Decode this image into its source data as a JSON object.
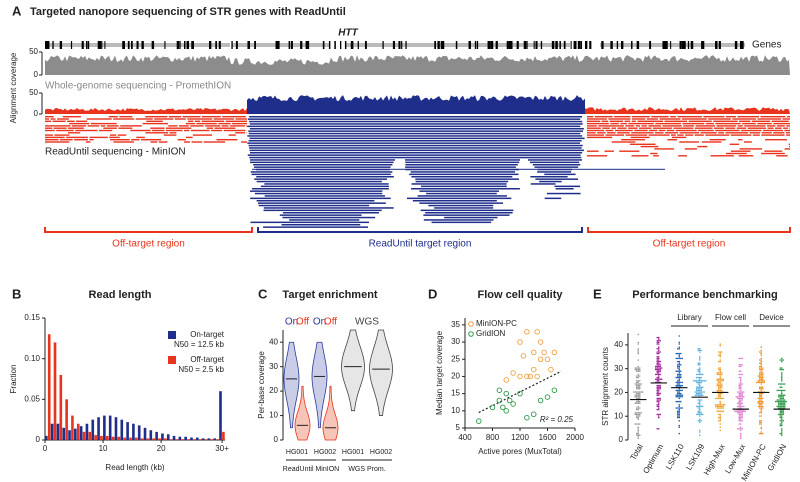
{
  "chart_data": [
    {
      "type": "tracks",
      "panel": "A",
      "title": "Targeted nanopore sequencing of STR genes with ReadUntil",
      "gene_label": "HTT",
      "gene_track_label": "Genes",
      "ylabel": "Alignment coverage",
      "yticks": [
        0,
        50
      ],
      "wgs_label": "Whole-genome sequencing - PromethION",
      "readuntil_label": "ReadUntil sequencing - MinION",
      "regions": [
        {
          "label": "Off-target region",
          "color": "#e8341c"
        },
        {
          "label": "ReadUntil target region",
          "color": "#1f2e8a"
        },
        {
          "label": "Off-target region",
          "color": "#e8341c"
        }
      ]
    },
    {
      "type": "histogram",
      "panel": "B",
      "title": "Read length",
      "xlabel": "Read length (kb)",
      "ylabel": "Fraction",
      "bins": [
        0,
        1,
        2,
        3,
        4,
        5,
        6,
        7,
        8,
        9,
        10,
        11,
        12,
        13,
        14,
        15,
        16,
        17,
        18,
        19,
        20,
        21,
        22,
        23,
        24,
        25,
        26,
        27,
        28,
        29,
        30,
        31
      ],
      "series": [
        {
          "name": "On-target",
          "annotation": "N50 = 12.5 kb",
          "color": "#1f2e8a",
          "values": [
            0.005,
            0.02,
            0.02,
            0.015,
            0.012,
            0.014,
            0.017,
            0.02,
            0.025,
            0.028,
            0.03,
            0.03,
            0.028,
            0.025,
            0.022,
            0.02,
            0.018,
            0.015,
            0.012,
            0.01,
            0.008,
            0.007,
            0.005,
            0.004,
            0.004,
            0.003,
            0.003,
            0.002,
            0.002,
            0.002,
            0.06
          ]
        },
        {
          "name": "Off-target",
          "annotation": "N50 = 2.5 kb",
          "color": "#e8341c",
          "values": [
            0.13,
            0.12,
            0.08,
            0.05,
            0.03,
            0.02,
            0.01,
            0.01,
            0.006,
            0.005,
            0.005,
            0.004,
            0.004,
            0.003,
            0.003,
            0.003,
            0.002,
            0.002,
            0.002,
            0.002,
            0.002,
            0.001,
            0.001,
            0.001,
            0.001,
            0.001,
            0.001,
            0.001,
            0.001,
            0.001,
            0.01
          ]
        }
      ],
      "xlim": [
        0,
        31
      ],
      "xticks": [
        0,
        10,
        20,
        {
          "value": 30.5,
          "label": "30+"
        }
      ],
      "ylim": [
        0,
        0.15
      ],
      "yticks": [
        0,
        0.05,
        {
          "value": 0.1,
          "label": "0.10"
        },
        0.15
      ]
    },
    {
      "type": "violin",
      "panel": "C",
      "title": "Target enrichment",
      "ylabel": "Per-base coverage",
      "categories": [
        "HG001",
        "HG002",
        "HG001",
        "HG002"
      ],
      "groups": [
        "ReadUntil MinION",
        "WGS Prom."
      ],
      "series": [
        {
          "name": "On",
          "color": "#2b3a9a",
          "fill": "#c9cde8",
          "values": [
            25,
            26,
            null,
            null
          ],
          "min": [
            5,
            5,
            null,
            null
          ],
          "max": [
            40,
            40,
            null,
            null
          ]
        },
        {
          "name": "Off",
          "color": "#e8341c",
          "fill": "#f7c4b8",
          "values": [
            6,
            5,
            null,
            null
          ],
          "min": [
            0,
            0,
            null,
            null
          ],
          "max": [
            22,
            22,
            null,
            null
          ]
        },
        {
          "name": "WGS",
          "color": "#444444",
          "fill": "#e6e6e6",
          "values": [
            null,
            null,
            30,
            29
          ],
          "min": [
            null,
            null,
            12,
            10
          ],
          "max": [
            null,
            null,
            45,
            45
          ]
        }
      ],
      "ylim": [
        0,
        45
      ],
      "yticks": [
        0,
        10,
        20,
        30,
        40
      ]
    },
    {
      "type": "scatter",
      "panel": "D",
      "title": "Flow cell quality",
      "xlabel": "Active pores (MuxTotal)",
      "ylabel": "Median target coverage",
      "annotation": "R² = 0.25",
      "series": [
        {
          "name": "MinION-PC",
          "color": "#f0a040",
          "x": [
            1200,
            1300,
            1450,
            1500,
            1550,
            1300,
            1350,
            1400,
            1500,
            1600,
            1650,
            1200,
            1100,
            1400,
            1700,
            1000,
            1250,
            1450
          ],
          "values": [
            30,
            33,
            33,
            30,
            27,
            20,
            20,
            22,
            25,
            25,
            22,
            20,
            21,
            27,
            27,
            19,
            26,
            20
          ]
        },
        {
          "name": "GridION",
          "color": "#2e9a4a",
          "x": [
            600,
            800,
            900,
            950,
            1000,
            1050,
            1100,
            1300,
            1400,
            1500,
            1600,
            1700,
            900,
            1200,
            1000
          ],
          "values": [
            7,
            11,
            13,
            11,
            10,
            13,
            12,
            8,
            9,
            13,
            14,
            16,
            16,
            15,
            15
          ]
        }
      ],
      "trendline": {
        "x": [
          600,
          1800
        ],
        "y": [
          9.5,
          21.5
        ]
      },
      "xlim": [
        400,
        2000
      ],
      "xticks": [
        400,
        800,
        1200,
        1600,
        2000
      ],
      "ylim": [
        5,
        37
      ],
      "yticks": [
        5,
        10,
        15,
        20,
        25,
        30,
        35
      ]
    },
    {
      "type": "swarm",
      "panel": "E",
      "title": "Performance benchmarking",
      "ylabel": "STR alignment counts",
      "categories": [
        "Total",
        "Optimum",
        "LSK110",
        "LSK109",
        "High-Mux",
        "Low-Mux",
        "MinION-PC",
        "GridION"
      ],
      "colors": [
        "#9a9a9a",
        "#a0229a",
        "#2060b0",
        "#5ab0e0",
        "#f0a030",
        "#e080d0",
        "#f09020",
        "#2e9a4a"
      ],
      "values": [
        17,
        24,
        22,
        18,
        20,
        13,
        20,
        13
      ],
      "min": [
        1,
        5,
        3,
        2,
        3,
        1,
        3,
        1
      ],
      "max": [
        45,
        43,
        44,
        40,
        42,
        35,
        42,
        35
      ],
      "groups": [
        {
          "label": "Library",
          "categories": [
            "LSK110",
            "LSK109"
          ]
        },
        {
          "label": "Flow cell",
          "categories": [
            "High-Mux",
            "Low-Mux"
          ]
        },
        {
          "label": "Device",
          "categories": [
            "MinION-PC",
            "GridION"
          ]
        }
      ],
      "ylim": [
        0,
        45
      ],
      "yticks": [
        0,
        10,
        20,
        30,
        40
      ]
    }
  ]
}
